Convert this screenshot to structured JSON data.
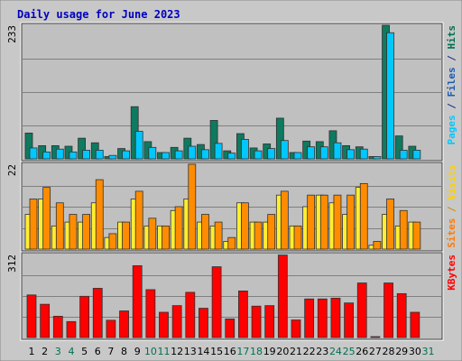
{
  "chart_data": {
    "type": "bar",
    "title": "Daily usage for June 2023",
    "days": [
      "1",
      "2",
      "3",
      "4",
      "5",
      "6",
      "7",
      "8",
      "9",
      "10",
      "11",
      "12",
      "13",
      "14",
      "15",
      "16",
      "17",
      "18",
      "19",
      "20",
      "21",
      "22",
      "23",
      "24",
      "25",
      "26",
      "27",
      "28",
      "29",
      "30",
      "31"
    ],
    "weekend_days": [
      "3",
      "4",
      "10",
      "11",
      "17",
      "18",
      "24",
      "25",
      "31"
    ],
    "panels": [
      {
        "id": "hits",
        "max_label": "233",
        "ymax": 233,
        "side_label": [
          {
            "text": "Pages",
            "color": "#00c8ff"
          },
          {
            "text": " / ",
            "color": "#1a2a8a"
          },
          {
            "text": "Files",
            "color": "#1a5cb0"
          },
          {
            "text": " / ",
            "color": "#1a2a8a"
          },
          {
            "text": "Hits",
            "color": "#007050"
          }
        ],
        "series": [
          {
            "name": "Hits",
            "color": "#0e7a60",
            "values": [
              45,
              23,
              23,
              22,
              36,
              28,
              4,
              18,
              91,
              30,
              11,
              20,
              36,
              25,
              67,
              14,
              44,
              19,
              26,
              71,
              11,
              31,
              30,
              49,
              23,
              21,
              4,
              233,
              40,
              22
            ]
          },
          {
            "name": "Files",
            "color": "#00c8ff",
            "values": [
              19,
              12,
              17,
              12,
              15,
              15,
              6,
              14,
              48,
              20,
              11,
              14,
              22,
              16,
              27,
              10,
              34,
              14,
              18,
              32,
              11,
              21,
              21,
              28,
              16,
              17,
              4,
              220,
              15,
              15
            ]
          }
        ]
      },
      {
        "id": "visits",
        "max_label": "22",
        "ymax": 22,
        "side_label": [
          {
            "text": "Sites",
            "color": "#ff7a00"
          },
          {
            "text": " / ",
            "color": "#c89000"
          },
          {
            "text": "Visits",
            "color": "#ffd000"
          }
        ],
        "series": [
          {
            "name": "Visits",
            "color": "#ffee30",
            "values": [
              9,
              13,
              6,
              7,
              7,
              12,
              3,
              7,
              13,
              6,
              6,
              10,
              13,
              7,
              6,
              2,
              12,
              7,
              7,
              14,
              6,
              11,
              14,
              12,
              9,
              16,
              1,
              9,
              6,
              7
            ]
          },
          {
            "name": "Sites",
            "color": "#ff8c00",
            "values": [
              13,
              16,
              12,
              9,
              9,
              18,
              4,
              7,
              15,
              8,
              6,
              11,
              22,
              9,
              7,
              3,
              12,
              7,
              9,
              15,
              6,
              14,
              14,
              14,
              14,
              17,
              2,
              13,
              10,
              7
            ]
          }
        ]
      },
      {
        "id": "kbytes",
        "max_label": "312",
        "ymax": 312,
        "side_label": [
          {
            "text": "KBytes",
            "color": "#ff0000"
          }
        ],
        "series": [
          {
            "name": "KBytes",
            "color": "#ff0000",
            "values": [
              160,
              125,
              80,
              60,
              155,
              185,
              65,
              100,
              270,
              180,
              95,
              120,
              170,
              110,
              266,
              70,
              175,
              118,
              120,
              310,
              66,
              145,
              145,
              148,
              130,
              205,
              3,
              205,
              165,
              95
            ]
          }
        ]
      }
    ]
  }
}
